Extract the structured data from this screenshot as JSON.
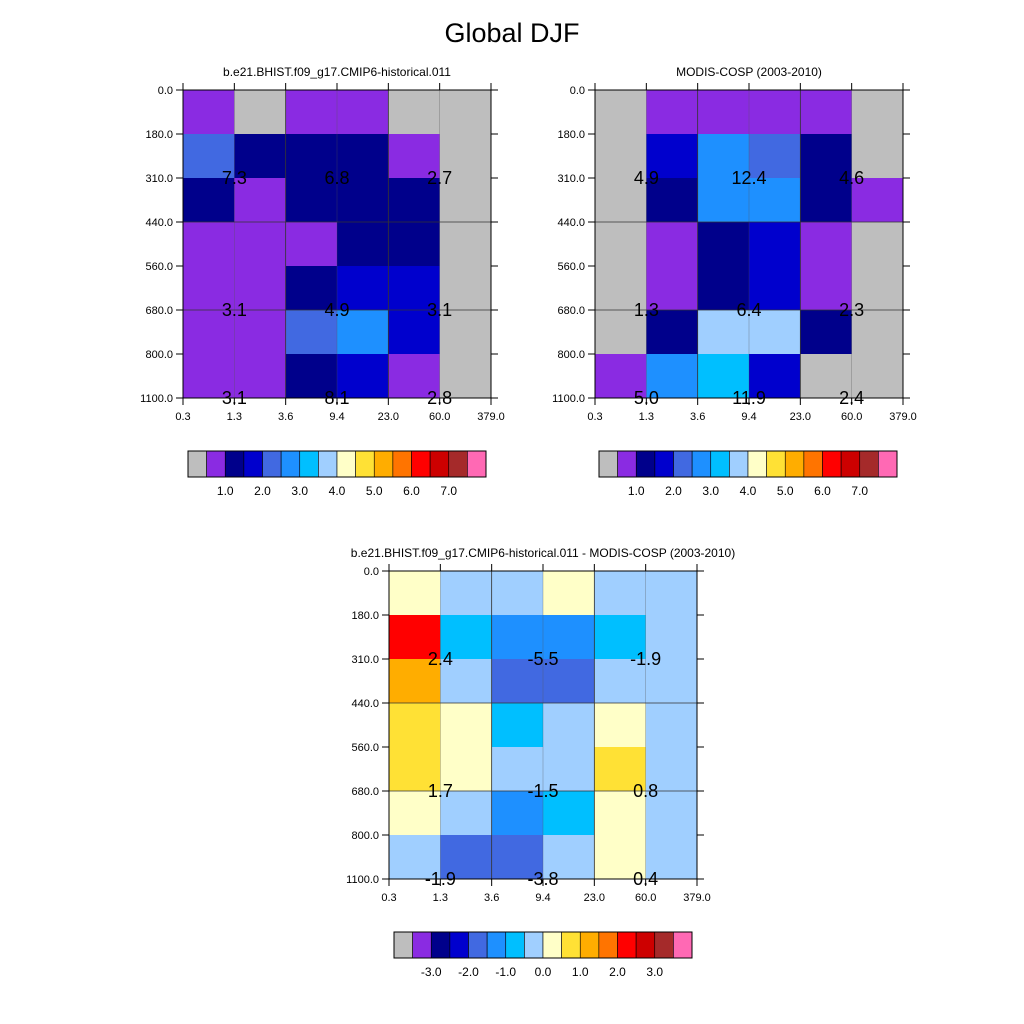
{
  "title": "Global DJF",
  "palette": [
    "#bebebe",
    "#8a2be2",
    "#00008b",
    "#0000cd",
    "#4169e1",
    "#1e90ff",
    "#00bfff",
    "#a0cfff",
    "#ffffc8",
    "#ffe135",
    "#ffad00",
    "#ff7400",
    "#ff0000",
    "#cd0000",
    "#a52a2a",
    "#ff69b4"
  ],
  "chart_data": [
    {
      "type": "heatmap",
      "title": "b.e21.BHIST.f09_g17.CMIP6-historical.011",
      "x_ticks": [
        "0.3",
        "1.3",
        "3.6",
        "9.4",
        "23.0",
        "60.0",
        "379.0"
      ],
      "y_ticks": [
        "0.0",
        "180.0",
        "310.0",
        "440.0",
        "560.0",
        "680.0",
        "800.0",
        "1100.0"
      ],
      "cell_color_index": [
        [
          1,
          0,
          1,
          1,
          0,
          0
        ],
        [
          4,
          2,
          2,
          2,
          1,
          0
        ],
        [
          2,
          1,
          2,
          2,
          2,
          0
        ],
        [
          1,
          1,
          1,
          2,
          2,
          0
        ],
        [
          1,
          1,
          2,
          3,
          3,
          0
        ],
        [
          1,
          1,
          4,
          5,
          3,
          0
        ],
        [
          1,
          1,
          2,
          3,
          1,
          0
        ]
      ],
      "values": [
        {
          "text": "7.3",
          "col": 1,
          "row": 1
        },
        {
          "text": "6.8",
          "col": 3,
          "row": 1
        },
        {
          "text": "2.7",
          "col": 5,
          "row": 1
        },
        {
          "text": "3.1",
          "col": 1,
          "row": 4
        },
        {
          "text": "4.9",
          "col": 3,
          "row": 4
        },
        {
          "text": "3.1",
          "col": 5,
          "row": 4
        },
        {
          "text": "3.1",
          "col": 1,
          "row": 6
        },
        {
          "text": "8.1",
          "col": 3,
          "row": 6
        },
        {
          "text": "2.8",
          "col": 5,
          "row": 6
        }
      ],
      "colorbar_labels": [
        "1.0",
        "2.0",
        "3.0",
        "4.0",
        "5.0",
        "6.0",
        "7.0"
      ]
    },
    {
      "type": "heatmap",
      "title": "MODIS-COSP (2003-2010)",
      "x_ticks": [
        "0.3",
        "1.3",
        "3.6",
        "9.4",
        "23.0",
        "60.0",
        "379.0"
      ],
      "y_ticks": [
        "0.0",
        "180.0",
        "310.0",
        "440.0",
        "560.0",
        "680.0",
        "800.0",
        "1100.0"
      ],
      "cell_color_index": [
        [
          0,
          1,
          1,
          1,
          1,
          0
        ],
        [
          0,
          3,
          5,
          4,
          2,
          0
        ],
        [
          0,
          2,
          5,
          5,
          2,
          1
        ],
        [
          0,
          1,
          2,
          3,
          1,
          0
        ],
        [
          0,
          1,
          2,
          3,
          1,
          0
        ],
        [
          0,
          2,
          7,
          7,
          2,
          0
        ],
        [
          1,
          5,
          6,
          3,
          0,
          0
        ]
      ],
      "values": [
        {
          "text": "4.9",
          "col": 1,
          "row": 1
        },
        {
          "text": "12.4",
          "col": 3,
          "row": 1
        },
        {
          "text": "4.6",
          "col": 5,
          "row": 1
        },
        {
          "text": "1.3",
          "col": 1,
          "row": 4
        },
        {
          "text": "6.4",
          "col": 3,
          "row": 4
        },
        {
          "text": "2.3",
          "col": 5,
          "row": 4
        },
        {
          "text": "5.0",
          "col": 1,
          "row": 6
        },
        {
          "text": "11.9",
          "col": 3,
          "row": 6
        },
        {
          "text": "2.4",
          "col": 5,
          "row": 6
        }
      ],
      "colorbar_labels": [
        "1.0",
        "2.0",
        "3.0",
        "4.0",
        "5.0",
        "6.0",
        "7.0"
      ]
    },
    {
      "type": "heatmap",
      "title": "b.e21.BHIST.f09_g17.CMIP6-historical.011 - MODIS-COSP (2003-2010)",
      "x_ticks": [
        "0.3",
        "1.3",
        "3.6",
        "9.4",
        "23.0",
        "60.0",
        "379.0"
      ],
      "y_ticks": [
        "0.0",
        "180.0",
        "310.0",
        "440.0",
        "560.0",
        "680.0",
        "800.0",
        "1100.0"
      ],
      "cell_color_index": [
        [
          8,
          7,
          7,
          8,
          7,
          7
        ],
        [
          12,
          6,
          5,
          5,
          6,
          7
        ],
        [
          10,
          7,
          4,
          4,
          7,
          7
        ],
        [
          9,
          8,
          6,
          7,
          8,
          7
        ],
        [
          9,
          8,
          7,
          7,
          9,
          7
        ],
        [
          8,
          7,
          5,
          6,
          8,
          7
        ],
        [
          7,
          4,
          4,
          7,
          8,
          7
        ]
      ],
      "values": [
        {
          "text": "2.4",
          "col": 1,
          "row": 1
        },
        {
          "text": "-5.5",
          "col": 3,
          "row": 1
        },
        {
          "text": "-1.9",
          "col": 5,
          "row": 1
        },
        {
          "text": "1.7",
          "col": 1,
          "row": 4
        },
        {
          "text": "-1.5",
          "col": 3,
          "row": 4
        },
        {
          "text": "0.8",
          "col": 5,
          "row": 4
        },
        {
          "text": "-1.9",
          "col": 1,
          "row": 6
        },
        {
          "text": "-3.8",
          "col": 3,
          "row": 6
        },
        {
          "text": "0.4",
          "col": 5,
          "row": 6
        }
      ],
      "colorbar_labels": [
        "-3.0",
        "-2.0",
        "-1.0",
        "0.0",
        "1.0",
        "2.0",
        "3.0"
      ]
    }
  ]
}
